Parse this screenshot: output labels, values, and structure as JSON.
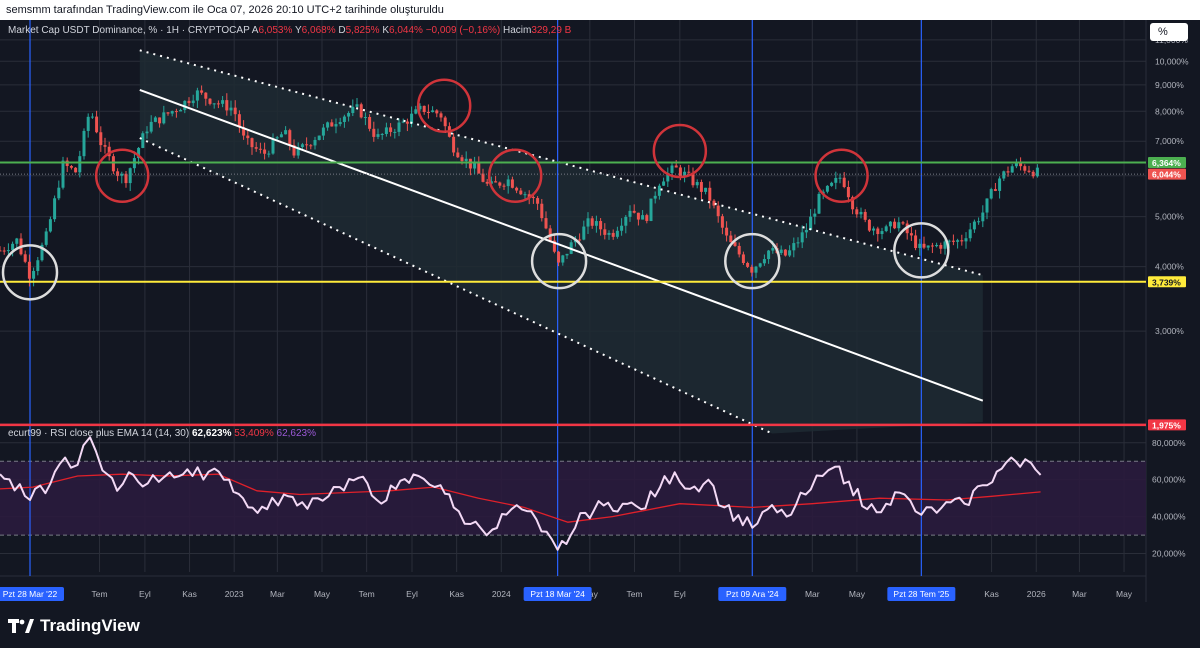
{
  "header": {
    "attribution": "semsmm tarafından TradingView.com ile Oca 07, 2026 20:10 UTC+2 tarihinde oluşturuldu"
  },
  "legend": {
    "symbol": "Market Cap USDT Dominance, % · 1H · CRYPTOCAP",
    "open_label": "A",
    "open": "6,053%",
    "high_label": "Y",
    "high": "6,068%",
    "low_label": "D",
    "low": "5,825%",
    "close_label": "K",
    "close": "6,044%",
    "change": "−0,009 (−0,16%)",
    "volume_label": "Hacim",
    "volume": "329,29 B"
  },
  "scale_button": "%",
  "rsi_legend": {
    "name": "ecurt99 · RSI close plus EMA 14 (14, 30)",
    "rsi": "62,623%",
    "ema": "53,409%",
    "extra": "62,623%"
  },
  "footer": {
    "brand": "TradingView"
  },
  "colors": {
    "up": "#26a69a",
    "down": "#ef5350",
    "bg": "#131722",
    "grid": "#2a2e39",
    "green_level": "#4caf50",
    "yellow_level": "#ffeb3b",
    "red_level": "#f23645",
    "rsi_line": "#f3d9f5",
    "ema_line": "#e0202a",
    "vline": "#2962ff"
  },
  "chart_data": [
    {
      "type": "candlestick",
      "title": "Market Cap USDT Dominance, % · 1H · CRYPTOCAP",
      "y_axis": {
        "scale": "log",
        "ylim": [
          2.0,
          11.6
        ],
        "ticks": [
          {
            "v": 3,
            "label": "3,000%"
          },
          {
            "v": 4,
            "label": "4,000%"
          },
          {
            "v": 5,
            "label": "5,000%"
          },
          {
            "v": 6,
            "label": "6,000%"
          },
          {
            "v": 7,
            "label": "7,000%"
          },
          {
            "v": 8,
            "label": "8,000%"
          },
          {
            "v": 9,
            "label": "9,000%"
          },
          {
            "v": 10,
            "label": "10,000%"
          },
          {
            "v": 11,
            "label": "11,000%"
          }
        ]
      },
      "x_axis": {
        "range": [
          "2022-02-15",
          "2026-05-31"
        ],
        "ticks": [
          {
            "date": "2022-07-01",
            "label": "Tem"
          },
          {
            "date": "2022-09-01",
            "label": "Eyl"
          },
          {
            "date": "2022-11-01",
            "label": "Kas"
          },
          {
            "date": "2023-01-01",
            "label": "2023"
          },
          {
            "date": "2023-03-01",
            "label": "Mar"
          },
          {
            "date": "2023-05-01",
            "label": "May"
          },
          {
            "date": "2023-07-01",
            "label": "Tem"
          },
          {
            "date": "2023-09-01",
            "label": "Eyl"
          },
          {
            "date": "2023-11-01",
            "label": "Kas"
          },
          {
            "date": "2024-01-01",
            "label": "2024"
          },
          {
            "date": "2024-05-01",
            "label": "May"
          },
          {
            "date": "2024-07-01",
            "label": "Tem"
          },
          {
            "date": "2024-09-01",
            "label": "Eyl"
          },
          {
            "date": "2025-03-01",
            "label": "Mar"
          },
          {
            "date": "2025-05-01",
            "label": "May"
          },
          {
            "date": "2025-11-01",
            "label": "Kas"
          },
          {
            "date": "2026-01-01",
            "label": "2026"
          },
          {
            "date": "2026-03-01",
            "label": "Mar"
          },
          {
            "date": "2026-05-01",
            "label": "May"
          }
        ]
      },
      "close_path": [
        {
          "date": "2022-02-15",
          "value": 4.3
        },
        {
          "date": "2022-03-10",
          "value": 4.5
        },
        {
          "date": "2022-03-28",
          "value": 3.85
        },
        {
          "date": "2022-04-20",
          "value": 4.6
        },
        {
          "date": "2022-05-12",
          "value": 6.3
        },
        {
          "date": "2022-05-30",
          "value": 6.1
        },
        {
          "date": "2022-06-18",
          "value": 8.1
        },
        {
          "date": "2022-07-05",
          "value": 6.8
        },
        {
          "date": "2022-07-25",
          "value": 6.1
        },
        {
          "date": "2022-08-05",
          "value": 5.9
        },
        {
          "date": "2022-09-05",
          "value": 7.5
        },
        {
          "date": "2022-10-20",
          "value": 8.2
        },
        {
          "date": "2022-11-10",
          "value": 8.7
        },
        {
          "date": "2022-12-10",
          "value": 8.3
        },
        {
          "date": "2022-12-31",
          "value": 8.1
        },
        {
          "date": "2023-01-15",
          "value": 7.0
        },
        {
          "date": "2023-02-10",
          "value": 6.6
        },
        {
          "date": "2023-03-10",
          "value": 7.3
        },
        {
          "date": "2023-03-25",
          "value": 6.6
        },
        {
          "date": "2023-04-20",
          "value": 7.1
        },
        {
          "date": "2023-05-25",
          "value": 7.8
        },
        {
          "date": "2023-06-20",
          "value": 8.1
        },
        {
          "date": "2023-07-15",
          "value": 7.1
        },
        {
          "date": "2023-08-20",
          "value": 7.6
        },
        {
          "date": "2023-09-15",
          "value": 8.1
        },
        {
          "date": "2023-10-10",
          "value": 7.9
        },
        {
          "date": "2023-10-25",
          "value": 6.9
        },
        {
          "date": "2023-11-10",
          "value": 6.5
        },
        {
          "date": "2023-11-25",
          "value": 6.2
        },
        {
          "date": "2023-12-15",
          "value": 5.7
        },
        {
          "date": "2024-01-10",
          "value": 5.9
        },
        {
          "date": "2024-01-30",
          "value": 5.6
        },
        {
          "date": "2024-02-20",
          "value": 5.3
        },
        {
          "date": "2024-03-10",
          "value": 4.4
        },
        {
          "date": "2024-03-18",
          "value": 4.0
        },
        {
          "date": "2024-04-05",
          "value": 4.4
        },
        {
          "date": "2024-05-01",
          "value": 4.9
        },
        {
          "date": "2024-05-30",
          "value": 4.6
        },
        {
          "date": "2024-06-25",
          "value": 5.2
        },
        {
          "date": "2024-07-15",
          "value": 4.9
        },
        {
          "date": "2024-08-05",
          "value": 5.9
        },
        {
          "date": "2024-08-25",
          "value": 6.2
        },
        {
          "date": "2024-09-10",
          "value": 6.0
        },
        {
          "date": "2024-10-10",
          "value": 5.5
        },
        {
          "date": "2024-11-05",
          "value": 4.5
        },
        {
          "date": "2024-12-09",
          "value": 3.95
        },
        {
          "date": "2024-12-30",
          "value": 4.3
        },
        {
          "date": "2025-01-25",
          "value": 4.2
        },
        {
          "date": "2025-02-20",
          "value": 4.7
        },
        {
          "date": "2025-03-10",
          "value": 5.4
        },
        {
          "date": "2025-04-10",
          "value": 6.0
        },
        {
          "date": "2025-04-25",
          "value": 5.3
        },
        {
          "date": "2025-05-15",
          "value": 4.8
        },
        {
          "date": "2025-06-10",
          "value": 4.7
        },
        {
          "date": "2025-06-25",
          "value": 4.9
        },
        {
          "date": "2025-07-28",
          "value": 4.3
        },
        {
          "date": "2025-08-20",
          "value": 4.4
        },
        {
          "date": "2025-09-20",
          "value": 4.5
        },
        {
          "date": "2025-10-20",
          "value": 5.1
        },
        {
          "date": "2025-11-10",
          "value": 5.9
        },
        {
          "date": "2025-12-01",
          "value": 6.3
        },
        {
          "date": "2025-12-20",
          "value": 6.2
        },
        {
          "date": "2026-01-07",
          "value": 6.044
        }
      ],
      "last": {
        "open": 6.053,
        "high": 6.068,
        "low": 5.825,
        "close": 6.044
      },
      "levels": [
        {
          "name": "green",
          "value": 6.364,
          "label": "6,364%"
        },
        {
          "name": "last",
          "value": 6.044,
          "label": "6,044%"
        },
        {
          "name": "yellow",
          "value": 3.739,
          "label": "3,739%"
        },
        {
          "name": "red",
          "value": 1.975,
          "label": "1,975%"
        }
      ],
      "vertical_markers": [
        {
          "date": "2022-03-28",
          "label": "Pzt 28 Mar '22"
        },
        {
          "date": "2024-03-18",
          "label": "Pzt 18 Mar '24"
        },
        {
          "date": "2024-12-09",
          "label": "Pzt 09 Ara '24"
        },
        {
          "date": "2025-07-28",
          "label": "Pzt 28 Tem '25"
        }
      ],
      "channel": {
        "upper": [
          {
            "date": "2022-08-25",
            "value": 10.5
          },
          {
            "date": "2025-10-20",
            "value": 3.85
          }
        ],
        "middle": [
          {
            "date": "2022-08-25",
            "value": 8.8
          },
          {
            "date": "2025-10-20",
            "value": 2.2
          }
        ],
        "lower": [
          {
            "date": "2022-08-25",
            "value": 7.1
          },
          {
            "date": "2025-01-05",
            "value": 1.9
          }
        ]
      },
      "red_circles": [
        {
          "date": "2022-08-01",
          "value": 6.0
        },
        {
          "date": "2023-10-15",
          "value": 8.2
        },
        {
          "date": "2024-01-20",
          "value": 6.0
        },
        {
          "date": "2024-09-01",
          "value": 6.7
        },
        {
          "date": "2025-04-10",
          "value": 6.0
        }
      ],
      "white_circles": [
        {
          "date": "2022-03-28",
          "value": 3.9
        },
        {
          "date": "2024-03-20",
          "value": 4.1
        },
        {
          "date": "2024-12-09",
          "value": 4.1
        },
        {
          "date": "2025-07-28",
          "value": 4.3
        }
      ]
    },
    {
      "type": "line",
      "title": "ecurt99 · RSI close plus EMA 14 (14, 30)",
      "ylim": [
        10,
        88
      ],
      "y_ticks": [
        {
          "v": 20,
          "label": "20,000%"
        },
        {
          "v": 40,
          "label": "40,000%"
        },
        {
          "v": 60,
          "label": "60,000%"
        },
        {
          "v": 80,
          "label": "80,000%"
        }
      ],
      "bands": [
        70,
        30
      ],
      "series": [
        {
          "name": "RSI",
          "points": [
            {
              "date": "2022-02-15",
              "value": 63
            },
            {
              "date": "2022-03-28",
              "value": 49
            },
            {
              "date": "2022-04-25",
              "value": 58
            },
            {
              "date": "2022-05-15",
              "value": 72
            },
            {
              "date": "2022-06-01",
              "value": 68
            },
            {
              "date": "2022-06-18",
              "value": 83
            },
            {
              "date": "2022-07-05",
              "value": 65
            },
            {
              "date": "2022-07-25",
              "value": 54
            },
            {
              "date": "2022-08-10",
              "value": 64
            },
            {
              "date": "2022-09-05",
              "value": 58
            },
            {
              "date": "2022-10-05",
              "value": 64
            },
            {
              "date": "2022-11-05",
              "value": 62
            },
            {
              "date": "2022-12-05",
              "value": 66
            },
            {
              "date": "2022-12-25",
              "value": 60
            },
            {
              "date": "2023-01-20",
              "value": 45
            },
            {
              "date": "2023-02-15",
              "value": 44
            },
            {
              "date": "2023-03-10",
              "value": 52
            },
            {
              "date": "2023-03-28",
              "value": 46
            },
            {
              "date": "2023-04-25",
              "value": 50
            },
            {
              "date": "2023-05-25",
              "value": 56
            },
            {
              "date": "2023-06-20",
              "value": 61
            },
            {
              "date": "2023-07-15",
              "value": 49
            },
            {
              "date": "2023-08-10",
              "value": 55
            },
            {
              "date": "2023-09-10",
              "value": 62
            },
            {
              "date": "2023-10-10",
              "value": 57
            },
            {
              "date": "2023-10-28",
              "value": 45
            },
            {
              "date": "2023-11-20",
              "value": 36
            },
            {
              "date": "2023-12-20",
              "value": 33
            },
            {
              "date": "2024-01-15",
              "value": 44
            },
            {
              "date": "2024-02-05",
              "value": 43
            },
            {
              "date": "2024-02-25",
              "value": 32
            },
            {
              "date": "2024-03-18",
              "value": 22
            },
            {
              "date": "2024-04-05",
              "value": 30
            },
            {
              "date": "2024-04-25",
              "value": 42
            },
            {
              "date": "2024-05-20",
              "value": 46
            },
            {
              "date": "2024-06-15",
              "value": 47
            },
            {
              "date": "2024-07-10",
              "value": 44
            },
            {
              "date": "2024-08-05",
              "value": 56
            },
            {
              "date": "2024-08-25",
              "value": 64
            },
            {
              "date": "2024-09-15",
              "value": 55
            },
            {
              "date": "2024-10-10",
              "value": 60
            },
            {
              "date": "2024-11-01",
              "value": 45
            },
            {
              "date": "2024-12-09",
              "value": 34
            },
            {
              "date": "2024-12-30",
              "value": 44
            },
            {
              "date": "2025-01-25",
              "value": 40
            },
            {
              "date": "2025-02-20",
              "value": 52
            },
            {
              "date": "2025-03-15",
              "value": 62
            },
            {
              "date": "2025-04-01",
              "value": 67
            },
            {
              "date": "2025-04-20",
              "value": 59
            },
            {
              "date": "2025-05-15",
              "value": 44
            },
            {
              "date": "2025-06-10",
              "value": 47
            },
            {
              "date": "2025-06-28",
              "value": 53
            },
            {
              "date": "2025-07-28",
              "value": 41
            },
            {
              "date": "2025-08-25",
              "value": 45
            },
            {
              "date": "2025-09-25",
              "value": 47
            },
            {
              "date": "2025-10-20",
              "value": 57
            },
            {
              "date": "2025-11-15",
              "value": 66
            },
            {
              "date": "2025-11-28",
              "value": 72
            },
            {
              "date": "2025-12-10",
              "value": 67
            },
            {
              "date": "2025-12-25",
              "value": 69
            },
            {
              "date": "2026-01-07",
              "value": 62.6
            }
          ]
        },
        {
          "name": "EMA 14",
          "points": [
            {
              "date": "2022-02-15",
              "value": 55
            },
            {
              "date": "2022-04-01",
              "value": 56
            },
            {
              "date": "2022-06-01",
              "value": 62
            },
            {
              "date": "2022-08-01",
              "value": 63
            },
            {
              "date": "2022-10-01",
              "value": 62
            },
            {
              "date": "2022-12-10",
              "value": 63
            },
            {
              "date": "2023-02-01",
              "value": 54
            },
            {
              "date": "2023-04-01",
              "value": 52
            },
            {
              "date": "2023-06-01",
              "value": 53
            },
            {
              "date": "2023-08-01",
              "value": 54
            },
            {
              "date": "2023-10-01",
              "value": 56
            },
            {
              "date": "2023-12-01",
              "value": 50
            },
            {
              "date": "2024-02-01",
              "value": 45
            },
            {
              "date": "2024-04-01",
              "value": 37
            },
            {
              "date": "2024-06-01",
              "value": 40
            },
            {
              "date": "2024-09-01",
              "value": 47
            },
            {
              "date": "2024-12-09",
              "value": 45
            },
            {
              "date": "2025-03-01",
              "value": 47
            },
            {
              "date": "2025-06-01",
              "value": 50
            },
            {
              "date": "2025-09-01",
              "value": 49
            },
            {
              "date": "2025-11-01",
              "value": 51
            },
            {
              "date": "2026-01-07",
              "value": 53.4
            }
          ]
        }
      ]
    }
  ]
}
